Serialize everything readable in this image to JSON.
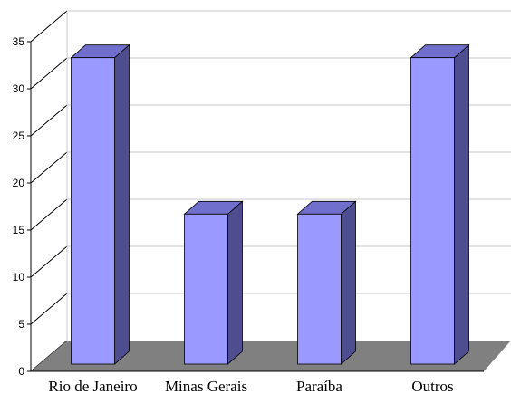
{
  "chart_data": {
    "type": "bar",
    "title": "",
    "xlabel": "",
    "ylabel": "",
    "categories": [
      "Rio de Janeiro",
      "Minas Gerais",
      "Paraíba",
      "Outros"
    ],
    "values": [
      33.3,
      16.7,
      16.7,
      33.3
    ],
    "ylim": [
      0,
      35
    ],
    "yticks": [
      0,
      5,
      10,
      15,
      20,
      25,
      30,
      35
    ],
    "grid": true,
    "legend": "none",
    "three_d": true,
    "colors": {
      "bar_front": "#9999ff",
      "bar_top": "#7070cc",
      "bar_side": "#4d4d8f",
      "floor": "#808080",
      "grid": "#c8c8c8",
      "axis": "#000000"
    }
  }
}
